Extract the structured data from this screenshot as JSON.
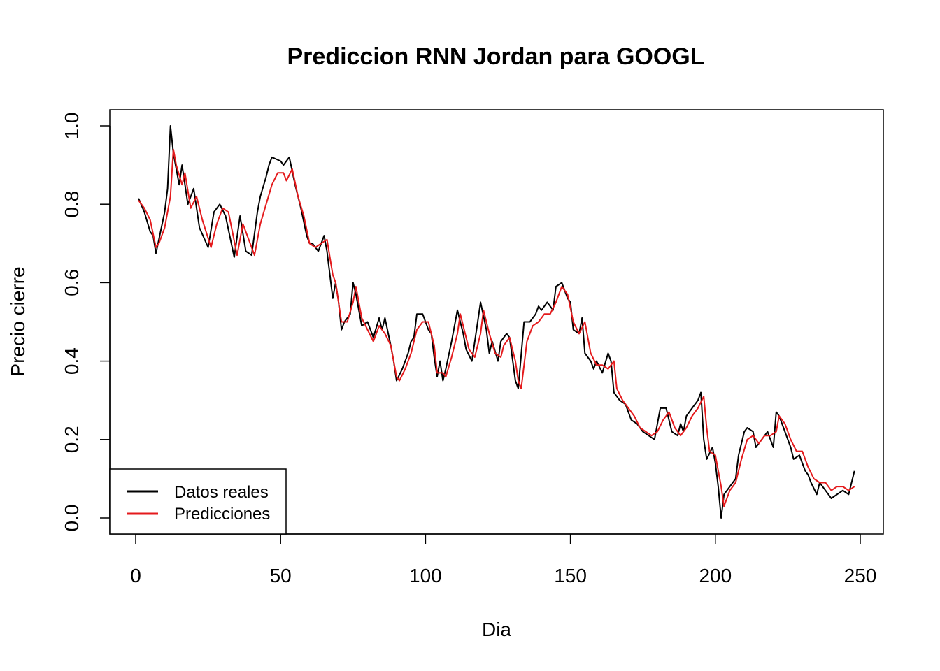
{
  "chart_data": {
    "type": "line",
    "title": "Prediccion RNN Jordan para  GOOGL",
    "xlabel": "Dia",
    "ylabel": "Precio cierre",
    "xlim": [
      1,
      248
    ],
    "ylim": [
      0,
      1
    ],
    "x_ticks": [
      "0",
      "50",
      "100",
      "150",
      "200",
      "250"
    ],
    "x_tick_values": [
      0,
      50,
      100,
      150,
      200,
      250
    ],
    "y_ticks": [
      "0.0",
      "0.2",
      "0.4",
      "0.6",
      "0.8",
      "1.0"
    ],
    "y_tick_values": [
      0,
      0.2,
      0.4,
      0.6,
      0.8,
      1.0
    ],
    "grid": false,
    "legend_position": "bottom-left",
    "colors": {
      "real": "#000000",
      "pred": "#e41a1c"
    },
    "series": [
      {
        "name": "Datos reales",
        "color": "#000000",
        "points": [
          [
            1,
            0.815
          ],
          [
            3,
            0.78
          ],
          [
            5,
            0.73
          ],
          [
            6,
            0.72
          ],
          [
            7,
            0.675
          ],
          [
            8,
            0.71
          ],
          [
            10,
            0.78
          ],
          [
            11,
            0.84
          ],
          [
            12,
            1.0
          ],
          [
            13,
            0.93
          ],
          [
            15,
            0.85
          ],
          [
            16,
            0.9
          ],
          [
            18,
            0.8
          ],
          [
            20,
            0.84
          ],
          [
            22,
            0.74
          ],
          [
            25,
            0.69
          ],
          [
            27,
            0.78
          ],
          [
            29,
            0.8
          ],
          [
            31,
            0.77
          ],
          [
            34,
            0.665
          ],
          [
            36,
            0.77
          ],
          [
            38,
            0.68
          ],
          [
            40,
            0.67
          ],
          [
            42,
            0.78
          ],
          [
            43,
            0.82
          ],
          [
            45,
            0.87
          ],
          [
            46,
            0.9
          ],
          [
            47,
            0.92
          ],
          [
            50,
            0.91
          ],
          [
            51,
            0.9
          ],
          [
            53,
            0.92
          ],
          [
            55,
            0.85
          ],
          [
            57,
            0.79
          ],
          [
            59,
            0.72
          ],
          [
            60,
            0.7
          ],
          [
            61,
            0.7
          ],
          [
            63,
            0.68
          ],
          [
            65,
            0.72
          ],
          [
            66,
            0.68
          ],
          [
            68,
            0.56
          ],
          [
            69,
            0.6
          ],
          [
            70,
            0.55
          ],
          [
            71,
            0.48
          ],
          [
            72,
            0.5
          ],
          [
            74,
            0.52
          ],
          [
            75,
            0.6
          ],
          [
            76,
            0.57
          ],
          [
            78,
            0.49
          ],
          [
            80,
            0.5
          ],
          [
            82,
            0.46
          ],
          [
            84,
            0.51
          ],
          [
            85,
            0.48
          ],
          [
            86,
            0.51
          ],
          [
            88,
            0.44
          ],
          [
            89,
            0.4
          ],
          [
            90,
            0.35
          ],
          [
            92,
            0.38
          ],
          [
            94,
            0.42
          ],
          [
            95,
            0.45
          ],
          [
            96,
            0.46
          ],
          [
            97,
            0.52
          ],
          [
            99,
            0.52
          ],
          [
            101,
            0.48
          ],
          [
            102,
            0.47
          ],
          [
            103,
            0.41
          ],
          [
            104,
            0.36
          ],
          [
            105,
            0.4
          ],
          [
            106,
            0.35
          ],
          [
            107,
            0.38
          ],
          [
            109,
            0.45
          ],
          [
            111,
            0.53
          ],
          [
            112,
            0.5
          ],
          [
            113,
            0.47
          ],
          [
            114,
            0.43
          ],
          [
            116,
            0.4
          ],
          [
            118,
            0.5
          ],
          [
            119,
            0.55
          ],
          [
            121,
            0.48
          ],
          [
            122,
            0.42
          ],
          [
            123,
            0.45
          ],
          [
            125,
            0.4
          ],
          [
            126,
            0.45
          ],
          [
            128,
            0.47
          ],
          [
            129,
            0.46
          ],
          [
            131,
            0.35
          ],
          [
            132,
            0.33
          ],
          [
            134,
            0.5
          ],
          [
            136,
            0.5
          ],
          [
            138,
            0.52
          ],
          [
            139,
            0.54
          ],
          [
            140,
            0.53
          ],
          [
            142,
            0.55
          ],
          [
            144,
            0.53
          ],
          [
            145,
            0.59
          ],
          [
            147,
            0.6
          ],
          [
            149,
            0.56
          ],
          [
            150,
            0.55
          ],
          [
            151,
            0.48
          ],
          [
            153,
            0.47
          ],
          [
            154,
            0.51
          ],
          [
            155,
            0.42
          ],
          [
            157,
            0.4
          ],
          [
            158,
            0.38
          ],
          [
            159,
            0.4
          ],
          [
            161,
            0.37
          ],
          [
            163,
            0.42
          ],
          [
            164,
            0.4
          ],
          [
            165,
            0.32
          ],
          [
            167,
            0.3
          ],
          [
            169,
            0.29
          ],
          [
            171,
            0.25
          ],
          [
            173,
            0.24
          ],
          [
            175,
            0.22
          ],
          [
            177,
            0.21
          ],
          [
            179,
            0.2
          ],
          [
            181,
            0.28
          ],
          [
            183,
            0.28
          ],
          [
            185,
            0.22
          ],
          [
            187,
            0.21
          ],
          [
            188,
            0.24
          ],
          [
            189,
            0.22
          ],
          [
            190,
            0.26
          ],
          [
            192,
            0.28
          ],
          [
            194,
            0.3
          ],
          [
            195,
            0.32
          ],
          [
            196,
            0.2
          ],
          [
            197,
            0.15
          ],
          [
            199,
            0.18
          ],
          [
            200,
            0.14
          ],
          [
            201,
            0.08
          ],
          [
            202,
            0.0
          ],
          [
            203,
            0.06
          ],
          [
            205,
            0.08
          ],
          [
            207,
            0.1
          ],
          [
            208,
            0.16
          ],
          [
            210,
            0.22
          ],
          [
            211,
            0.23
          ],
          [
            213,
            0.22
          ],
          [
            214,
            0.18
          ],
          [
            216,
            0.2
          ],
          [
            218,
            0.22
          ],
          [
            220,
            0.18
          ],
          [
            221,
            0.27
          ],
          [
            222,
            0.26
          ],
          [
            224,
            0.22
          ],
          [
            226,
            0.18
          ],
          [
            227,
            0.15
          ],
          [
            229,
            0.16
          ],
          [
            230,
            0.14
          ],
          [
            231,
            0.12
          ],
          [
            232,
            0.11
          ],
          [
            233,
            0.09
          ],
          [
            235,
            0.06
          ],
          [
            236,
            0.09
          ],
          [
            238,
            0.07
          ],
          [
            240,
            0.05
          ],
          [
            242,
            0.06
          ],
          [
            244,
            0.07
          ],
          [
            246,
            0.06
          ],
          [
            248,
            0.12
          ]
        ]
      },
      {
        "name": "Predicciones",
        "color": "#e41a1c",
        "points": [
          [
            1,
            0.81
          ],
          [
            3,
            0.79
          ],
          [
            5,
            0.76
          ],
          [
            7,
            0.69
          ],
          [
            8,
            0.7
          ],
          [
            10,
            0.74
          ],
          [
            12,
            0.82
          ],
          [
            13,
            0.94
          ],
          [
            14,
            0.9
          ],
          [
            16,
            0.85
          ],
          [
            17,
            0.88
          ],
          [
            19,
            0.79
          ],
          [
            21,
            0.82
          ],
          [
            23,
            0.76
          ],
          [
            26,
            0.69
          ],
          [
            28,
            0.75
          ],
          [
            30,
            0.79
          ],
          [
            32,
            0.78
          ],
          [
            35,
            0.67
          ],
          [
            37,
            0.75
          ],
          [
            39,
            0.71
          ],
          [
            41,
            0.67
          ],
          [
            43,
            0.75
          ],
          [
            45,
            0.8
          ],
          [
            47,
            0.85
          ],
          [
            49,
            0.88
          ],
          [
            51,
            0.88
          ],
          [
            52,
            0.86
          ],
          [
            54,
            0.89
          ],
          [
            56,
            0.82
          ],
          [
            58,
            0.77
          ],
          [
            60,
            0.7
          ],
          [
            62,
            0.69
          ],
          [
            64,
            0.7
          ],
          [
            66,
            0.71
          ],
          [
            68,
            0.62
          ],
          [
            69,
            0.6
          ],
          [
            71,
            0.5
          ],
          [
            73,
            0.5
          ],
          [
            75,
            0.55
          ],
          [
            76,
            0.59
          ],
          [
            78,
            0.51
          ],
          [
            80,
            0.48
          ],
          [
            82,
            0.45
          ],
          [
            84,
            0.49
          ],
          [
            86,
            0.47
          ],
          [
            88,
            0.44
          ],
          [
            90,
            0.36
          ],
          [
            91,
            0.35
          ],
          [
            93,
            0.38
          ],
          [
            95,
            0.42
          ],
          [
            97,
            0.48
          ],
          [
            99,
            0.5
          ],
          [
            101,
            0.5
          ],
          [
            103,
            0.44
          ],
          [
            104,
            0.37
          ],
          [
            106,
            0.37
          ],
          [
            107,
            0.36
          ],
          [
            109,
            0.41
          ],
          [
            111,
            0.47
          ],
          [
            112,
            0.52
          ],
          [
            114,
            0.46
          ],
          [
            115,
            0.43
          ],
          [
            117,
            0.41
          ],
          [
            119,
            0.47
          ],
          [
            120,
            0.53
          ],
          [
            122,
            0.47
          ],
          [
            124,
            0.42
          ],
          [
            126,
            0.41
          ],
          [
            127,
            0.44
          ],
          [
            129,
            0.46
          ],
          [
            131,
            0.4
          ],
          [
            132,
            0.35
          ],
          [
            133,
            0.33
          ],
          [
            135,
            0.45
          ],
          [
            137,
            0.49
          ],
          [
            139,
            0.5
          ],
          [
            141,
            0.52
          ],
          [
            143,
            0.52
          ],
          [
            145,
            0.55
          ],
          [
            147,
            0.59
          ],
          [
            149,
            0.57
          ],
          [
            151,
            0.5
          ],
          [
            153,
            0.47
          ],
          [
            155,
            0.5
          ],
          [
            157,
            0.42
          ],
          [
            159,
            0.39
          ],
          [
            161,
            0.39
          ],
          [
            163,
            0.38
          ],
          [
            165,
            0.4
          ],
          [
            166,
            0.33
          ],
          [
            168,
            0.3
          ],
          [
            170,
            0.28
          ],
          [
            172,
            0.26
          ],
          [
            174,
            0.23
          ],
          [
            176,
            0.22
          ],
          [
            178,
            0.21
          ],
          [
            180,
            0.22
          ],
          [
            182,
            0.25
          ],
          [
            184,
            0.27
          ],
          [
            186,
            0.23
          ],
          [
            188,
            0.21
          ],
          [
            190,
            0.23
          ],
          [
            192,
            0.26
          ],
          [
            194,
            0.28
          ],
          [
            196,
            0.31
          ],
          [
            197,
            0.23
          ],
          [
            198,
            0.17
          ],
          [
            200,
            0.16
          ],
          [
            202,
            0.08
          ],
          [
            203,
            0.03
          ],
          [
            205,
            0.07
          ],
          [
            207,
            0.09
          ],
          [
            209,
            0.15
          ],
          [
            211,
            0.2
          ],
          [
            213,
            0.21
          ],
          [
            215,
            0.19
          ],
          [
            217,
            0.21
          ],
          [
            219,
            0.21
          ],
          [
            221,
            0.22
          ],
          [
            222,
            0.26
          ],
          [
            224,
            0.24
          ],
          [
            226,
            0.2
          ],
          [
            228,
            0.17
          ],
          [
            230,
            0.17
          ],
          [
            232,
            0.13
          ],
          [
            234,
            0.1
          ],
          [
            236,
            0.09
          ],
          [
            238,
            0.09
          ],
          [
            240,
            0.07
          ],
          [
            242,
            0.08
          ],
          [
            244,
            0.08
          ],
          [
            246,
            0.07
          ],
          [
            248,
            0.08
          ]
        ]
      }
    ]
  }
}
